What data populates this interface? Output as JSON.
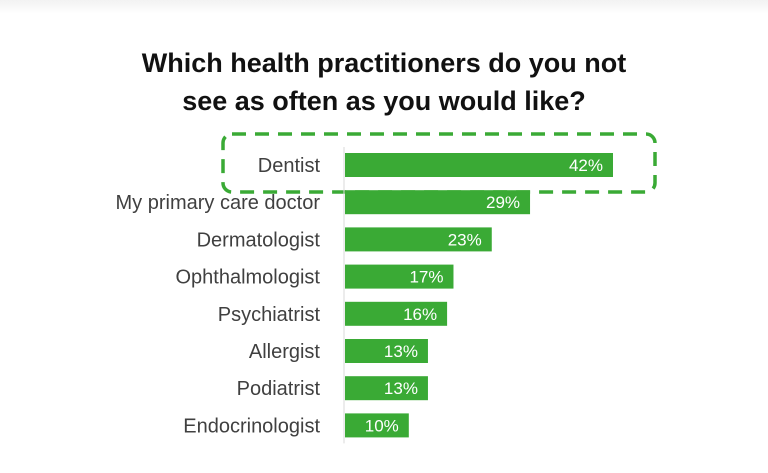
{
  "chart_data": {
    "type": "bar",
    "orientation": "horizontal",
    "title_lines": [
      "Which health practitioners do you not",
      "see as often as you would like?"
    ],
    "categories": [
      "Dentist",
      "My primary care doctor",
      "Dermatologist",
      "Ophthalmologist",
      "Psychiatrist",
      "Allergist",
      "Podiatrist",
      "Endocrinologist"
    ],
    "values": [
      42,
      29,
      23,
      17,
      16,
      13,
      13,
      10
    ],
    "value_labels": [
      "42%",
      "29%",
      "23%",
      "17%",
      "16%",
      "13%",
      "13%",
      "10%"
    ],
    "highlighted_category": "Dentist",
    "colors": {
      "bar": "#3aaa35",
      "highlight_outline": "#3aaa35",
      "axis": "#d9d9d9"
    },
    "grid": false,
    "legend": "none"
  }
}
